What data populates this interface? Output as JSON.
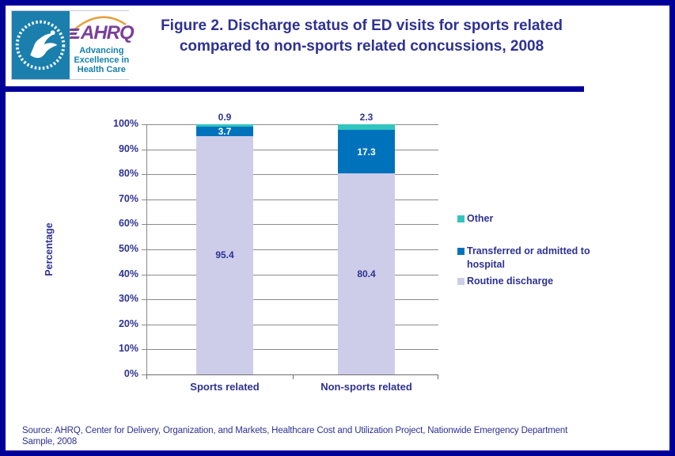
{
  "header": {
    "logo": {
      "ahrq_wordmark": "AHRQ",
      "tagline_line1": "Advancing",
      "tagline_line2": "Excellence in",
      "tagline_line3": "Health Care"
    },
    "title_line1": "Figure 2. Discharge status of ED visits for sports related",
    "title_line2": "compared to non-sports related concussions, 2008"
  },
  "chart_data": {
    "type": "bar",
    "stacked": true,
    "title": "Figure 2. Discharge status of ED visits for sports related compared to non-sports related concussions, 2008",
    "categories": [
      "Sports related",
      "Non-sports related"
    ],
    "series": [
      {
        "name": "Routine discharge",
        "values": [
          95.4,
          80.4
        ],
        "color": "#CDCDE9",
        "label_style": "inside-dark"
      },
      {
        "name": "Transferred or admitted to hospital",
        "values": [
          3.7,
          17.3
        ],
        "color": "#0072BC",
        "label_style": "inside-white"
      },
      {
        "name": "Other",
        "values": [
          0.9,
          2.3
        ],
        "color": "#31C5BE",
        "label_style": "above"
      }
    ],
    "xlabel": "",
    "ylabel": "Percentage",
    "ylim": [
      0,
      100
    ],
    "ytick_step": 10,
    "ytick_suffix": "%",
    "grid": true,
    "legend_position": "right"
  },
  "source": {
    "line1": "Source: AHRQ, Center for Delivery, Organization, and Markets, Healthcare Cost and Utilization Project, Nationwide Emergency Department",
    "line2": "Sample, 2008"
  },
  "colors": {
    "border-navy": "#000099",
    "text-navy": "#2E3192",
    "grid-gray": "#8a8a8a",
    "seal-teal": "#1A7FAD",
    "ahrq-purple": "#7B3F9A",
    "arc-orange": "#E5A03C",
    "tagline-teal": "#1580AC"
  }
}
